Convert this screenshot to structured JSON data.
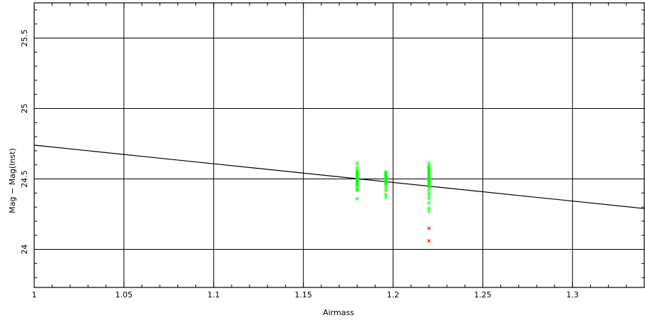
{
  "chart_data": {
    "type": "scatter",
    "title": "",
    "xlabel": "Airmass",
    "ylabel": "Mag − Mag(Inst)",
    "xlim": [
      1.0,
      1.34
    ],
    "ylim": [
      23.73,
      25.75
    ],
    "xticks": [
      1,
      1.05,
      1.1,
      1.15,
      1.2,
      1.25,
      1.3
    ],
    "xtick_labels": [
      "1",
      "1.05",
      "1.1",
      "1.15",
      "1.2",
      "1.25",
      "1.3"
    ],
    "yticks": [
      24,
      24.5,
      25,
      25.5
    ],
    "ytick_labels": [
      "24",
      "24.5",
      "25",
      "25.5"
    ],
    "grid": true,
    "colors": {
      "used": "#00ff00",
      "rejected": "#ff0000",
      "fit": "#000000",
      "grid": "#000000"
    },
    "series": [
      {
        "marker": "x",
        "color": "#00ff00",
        "x": [
          1.18,
          1.18,
          1.18,
          1.18,
          1.18,
          1.18,
          1.18,
          1.18,
          1.18,
          1.18,
          1.18,
          1.18,
          1.18,
          1.18,
          1.18,
          1.18,
          1.18,
          1.196,
          1.196,
          1.196,
          1.196,
          1.196,
          1.196,
          1.196,
          1.196,
          1.196,
          1.196,
          1.196,
          1.196,
          1.196,
          1.196,
          1.22,
          1.22,
          1.22,
          1.22,
          1.22,
          1.22,
          1.22,
          1.22,
          1.22,
          1.22,
          1.22,
          1.22,
          1.22,
          1.22,
          1.22,
          1.22,
          1.22,
          1.22,
          1.22,
          1.22,
          1.22,
          1.22,
          1.22,
          1.22
        ],
        "y": [
          24.61,
          24.58,
          24.56,
          24.55,
          24.54,
          24.53,
          24.52,
          24.51,
          24.5,
          24.49,
          24.48,
          24.47,
          24.46,
          24.45,
          24.43,
          24.42,
          24.36,
          24.55,
          24.54,
          24.53,
          24.52,
          24.51,
          24.5,
          24.49,
          24.48,
          24.47,
          24.46,
          24.44,
          24.42,
          24.39,
          24.37,
          24.61,
          24.59,
          24.58,
          24.57,
          24.56,
          24.55,
          24.54,
          24.53,
          24.52,
          24.51,
          24.5,
          24.49,
          24.48,
          24.47,
          24.46,
          24.45,
          24.44,
          24.42,
          24.4,
          24.38,
          24.36,
          24.33,
          24.29,
          24.27
        ]
      },
      {
        "marker": "x",
        "color": "#ff0000",
        "x": [
          1.22,
          1.22
        ],
        "y": [
          24.15,
          24.06
        ]
      }
    ],
    "fit_line": {
      "x": [
        1.0,
        1.34
      ],
      "y": [
        24.74,
        24.29
      ]
    }
  }
}
